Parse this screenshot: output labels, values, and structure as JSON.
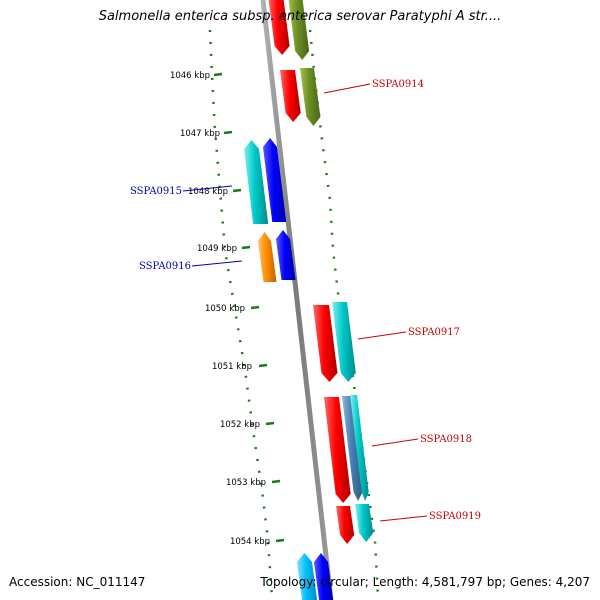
{
  "title": "Salmonella enterica subsp. enterica serovar Paratyphi A str....",
  "footer": {
    "accession": "Accession: NC_011147",
    "summary": "Topology: circular; Length: 4,581,797 bp; Genes: 4,207"
  },
  "colors": {
    "backbone": "#8c8c8c",
    "tick": "#1a7a1a",
    "forward_label": "#cc0000",
    "reverse_label": "#0000aa",
    "red": "#ff0000",
    "olive": "#6b8e23",
    "cyan": "#00c8c8",
    "blue": "#0000ff",
    "orange": "#ff8c00",
    "steel": "#4682b4",
    "skyblue": "#00bfff"
  },
  "ticks": [
    "1046 kbp",
    "1047 kbp",
    "1048 kbp",
    "1049 kbp",
    "1050 kbp",
    "1051 kbp",
    "1052 kbp",
    "1053 kbp",
    "1054 kbp"
  ],
  "gene_labels": [
    {
      "text": "SSPA0914",
      "strand": "forward"
    },
    {
      "text": "SSPA0915",
      "strand": "reverse"
    },
    {
      "text": "SSPA0916",
      "strand": "reverse"
    },
    {
      "text": "SSPA0917",
      "strand": "forward"
    },
    {
      "text": "SSPA0918",
      "strand": "forward"
    },
    {
      "text": "SSPA0919",
      "strand": "forward"
    }
  ],
  "genes": [
    {
      "strand": "forward",
      "color": "red"
    },
    {
      "strand": "forward",
      "color": "olive"
    },
    {
      "strand": "forward",
      "color": "red"
    },
    {
      "strand": "forward",
      "color": "olive"
    },
    {
      "strand": "reverse",
      "color": "cyan"
    },
    {
      "strand": "reverse",
      "color": "blue"
    },
    {
      "strand": "reverse",
      "color": "orange"
    },
    {
      "strand": "reverse",
      "color": "blue"
    },
    {
      "strand": "forward",
      "color": "red"
    },
    {
      "strand": "forward",
      "color": "cyan"
    },
    {
      "strand": "forward",
      "color": "red"
    },
    {
      "strand": "forward",
      "color": "steel"
    },
    {
      "strand": "forward",
      "color": "cyan"
    },
    {
      "strand": "forward",
      "color": "red"
    },
    {
      "strand": "forward",
      "color": "cyan"
    },
    {
      "strand": "reverse",
      "color": "skyblue"
    },
    {
      "strand": "reverse",
      "color": "blue"
    }
  ]
}
